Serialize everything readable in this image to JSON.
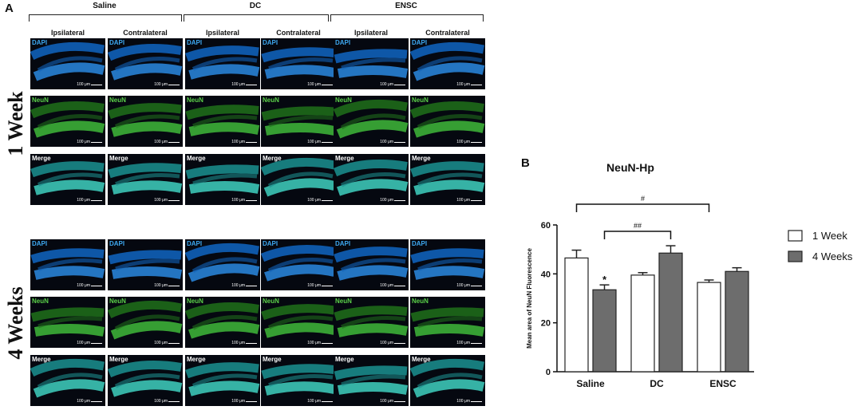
{
  "panel_a": {
    "letter": "A",
    "groups": [
      "Saline",
      "DC",
      "ENSC"
    ],
    "columns": [
      "Ipsilateral",
      "Contralateral"
    ],
    "rows": [
      "1 Week",
      "4 Weeks"
    ],
    "stains": [
      "DAPI",
      "NeuN",
      "Merge"
    ],
    "scale_text": "100 μm"
  },
  "panel_b": {
    "letter": "B"
  },
  "chart_data": {
    "type": "bar",
    "title": "NeuN-Hp",
    "ylabel": "Mean area of NeuN Fluorescence",
    "xlabel": "",
    "categories": [
      "Saline",
      "DC",
      "ENSC"
    ],
    "ylim": [
      0,
      60
    ],
    "yticks": [
      0,
      20,
      40,
      60
    ],
    "series": [
      {
        "name": "1 Week",
        "values": [
          46.5,
          39.5,
          36.5
        ],
        "errors": [
          3.2,
          1.0,
          1.0
        ],
        "color": "#ffffff"
      },
      {
        "name": "4 Weeks",
        "values": [
          33.5,
          48.5,
          41.0
        ],
        "errors": [
          2.0,
          3.0,
          1.5
        ],
        "color": "#6d6d6d"
      }
    ],
    "annotations": {
      "star": "*",
      "hash_single": "#",
      "hash_double": "##"
    },
    "legend_position": "right"
  }
}
